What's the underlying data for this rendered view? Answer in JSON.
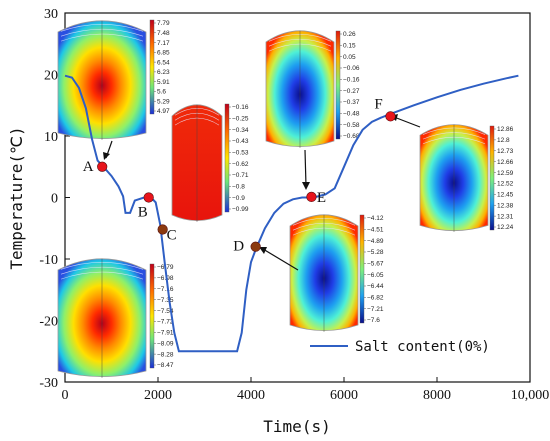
{
  "chart_data": {
    "type": "line",
    "title": "",
    "xlabel": "Time(s)",
    "ylabel": "Temperature(℃)",
    "xlim": [
      0,
      10000
    ],
    "ylim": [
      -30,
      30
    ],
    "x_ticks": [
      0,
      2000,
      4000,
      6000,
      8000,
      10000
    ],
    "x_tick_labels": [
      "0",
      "2000",
      "4000",
      "6000",
      "8000",
      "10,000"
    ],
    "y_ticks": [
      -30,
      -20,
      -10,
      0,
      10,
      20,
      30
    ],
    "y_tick_labels": [
      "-30",
      "-20",
      "-10",
      "0",
      "10",
      "20",
      "30"
    ],
    "grid": false,
    "legend_position": "bottom-right",
    "line_color": "#2f5fc4",
    "series": [
      {
        "name": "Salt content(0%)",
        "x": [
          0,
          150,
          300,
          450,
          580,
          700,
          850,
          1000,
          1150,
          1250,
          1300,
          1400,
          1500,
          1700,
          1850,
          1950,
          2050,
          2150,
          2250,
          2350,
          2450,
          2500,
          3700,
          3800,
          3900,
          4000,
          4100,
          4300,
          4500,
          4700,
          4900,
          5100,
          5300,
          5400,
          5600,
          5800,
          6000,
          6200,
          6400,
          6600,
          6800,
          7000,
          7500,
          8000,
          8500,
          9000,
          9500,
          9750
        ],
        "y": [
          19.8,
          19.5,
          17.8,
          14.5,
          9.5,
          6.0,
          4.8,
          3.5,
          1.8,
          0.2,
          -2.5,
          -2.5,
          -0.5,
          0.0,
          0.0,
          -0.8,
          -4.5,
          -11.0,
          -17.0,
          -22.0,
          -25.0,
          -25.0,
          -25.0,
          -22.0,
          -15.0,
          -10.5,
          -8.5,
          -5.0,
          -2.5,
          -1.0,
          -0.3,
          0.0,
          0.0,
          0.1,
          0.5,
          1.5,
          5.0,
          8.5,
          11.0,
          12.3,
          13.0,
          13.6,
          15.0,
          16.3,
          17.5,
          18.5,
          19.4,
          19.8
        ]
      }
    ],
    "points": [
      {
        "label": "A",
        "x": 800,
        "y": 5.0,
        "color": "#e8141c"
      },
      {
        "label": "B",
        "x": 1800,
        "y": 0.0,
        "color": "#e8141c"
      },
      {
        "label": "C",
        "x": 2100,
        "y": -5.2,
        "color": "#8b3a10"
      },
      {
        "label": "D",
        "x": 4100,
        "y": -8.0,
        "color": "#8b3a10"
      },
      {
        "label": "E",
        "x": 5300,
        "y": 0.1,
        "color": "#e8141c"
      },
      {
        "label": "F",
        "x": 7000,
        "y": 13.2,
        "color": "#e8141c"
      }
    ],
    "insets": [
      {
        "id": "A",
        "scale": [
          "7.79",
          "7.48",
          "7.17",
          "6.85",
          "6.54",
          "6.23",
          "5.91",
          "5.6",
          "5.29",
          "4.97"
        ],
        "style": "warm"
      },
      {
        "id": "B",
        "scale": [
          "−0.16",
          "−0.25",
          "−0.34",
          "−0.43",
          "−0.53",
          "−0.62",
          "−0.71",
          "−0.8",
          "−0.9",
          "−0.99"
        ],
        "style": "red"
      },
      {
        "id": "C",
        "scale": [
          "−6.79",
          "−6.98",
          "−7.16",
          "−7.35",
          "−7.54",
          "−7.72",
          "−7.91",
          "−8.09",
          "−8.28",
          "−8.47"
        ],
        "style": "warm"
      },
      {
        "id": "D",
        "scale": [
          "−4.12",
          "−4.51",
          "−4.89",
          "−5.28",
          "−5.67",
          "−6.05",
          "−6.44",
          "−6.82",
          "−7.21",
          "−7.6"
        ],
        "style": "cold"
      },
      {
        "id": "E",
        "scale": [
          "0.26",
          "0.15",
          "0.05",
          "−0.06",
          "−0.16",
          "−0.27",
          "−0.37",
          "−0.48",
          "−0.58",
          "−0.68"
        ],
        "style": "cold"
      },
      {
        "id": "F",
        "scale": [
          "12.86",
          "12.8",
          "12.73",
          "12.66",
          "12.59",
          "12.52",
          "12.45",
          "12.38",
          "12.31",
          "12.24"
        ],
        "style": "cold"
      }
    ]
  }
}
